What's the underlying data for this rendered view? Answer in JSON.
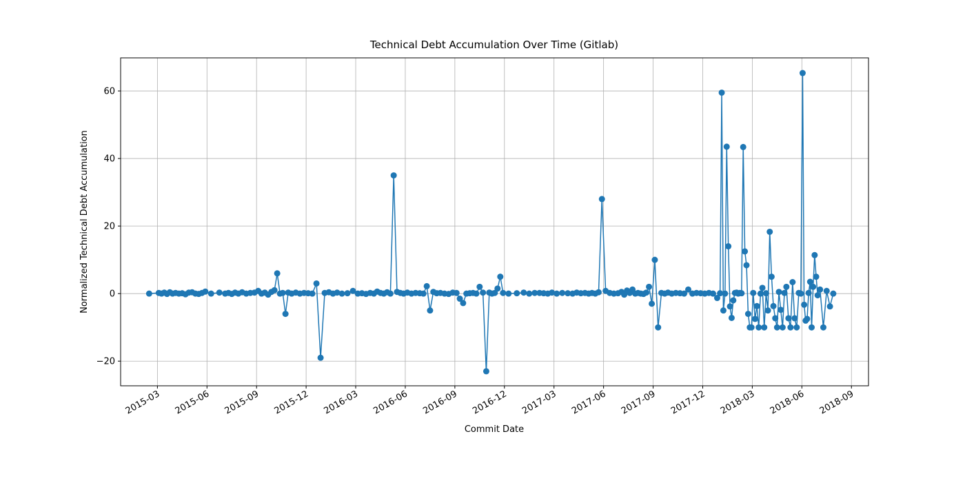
{
  "chart_data": {
    "type": "line",
    "title": "Technical Debt Accumulation Over Time (Gitlab)",
    "x_label": "Commit Date",
    "y_label": "Normalized Technical Debt Accumulation",
    "color": "#1f77b4",
    "grid": true,
    "xlim": [
      "2014-12-25",
      "2018-10-02"
    ],
    "ylim": [
      -27.3,
      69.8
    ],
    "xticks": [
      "2015-03",
      "2015-06",
      "2015-09",
      "2015-12",
      "2016-03",
      "2016-06",
      "2016-09",
      "2016-12",
      "2017-03",
      "2017-06",
      "2017-09",
      "2017-12",
      "2018-03",
      "2018-06",
      "2018-09"
    ],
    "yticks": [
      {
        "value": -20,
        "label": "−20"
      },
      0,
      20,
      40,
      60
    ],
    "x": [
      "2015-02",
      "2015-03",
      "2015-03",
      "2015-03",
      "2015-03",
      "2015-03",
      "2015-03",
      "2015-04",
      "2015-04",
      "2015-04",
      "2015-04",
      "2015-04",
      "2015-05",
      "2015-05",
      "2015-05",
      "2015-05",
      "2015-05",
      "2015-06",
      "2015-06",
      "2015-07",
      "2015-07",
      "2015-07",
      "2015-07",
      "2015-07",
      "2015-08",
      "2015-08",
      "2015-08",
      "2015-08",
      "2015-09",
      "2015-09",
      "2015-09",
      "2015-09",
      "2015-09",
      "2015-10",
      "2015-10",
      "2015-10",
      "2015-10",
      "2015-10",
      "2015-10",
      "2015-11",
      "2015-11",
      "2015-11",
      "2015-11",
      "2015-12",
      "2015-12",
      "2015-12",
      "2015-12",
      "2016-01",
      "2016-01",
      "2016-01",
      "2016-01",
      "2016-02",
      "2016-02",
      "2016-02",
      "2016-03",
      "2016-03",
      "2016-03",
      "2016-03",
      "2016-04",
      "2016-04",
      "2016-04",
      "2016-04",
      "2016-04",
      "2016-05",
      "2016-05",
      "2016-05",
      "2016-05",
      "2016-05",
      "2016-06",
      "2016-06",
      "2016-06",
      "2016-06",
      "2016-07",
      "2016-07",
      "2016-07",
      "2016-07",
      "2016-07",
      "2016-08",
      "2016-08",
      "2016-08",
      "2016-08",
      "2016-09",
      "2016-09",
      "2016-09",
      "2016-09",
      "2016-09",
      "2016-10",
      "2016-10",
      "2016-10",
      "2016-10",
      "2016-10",
      "2016-11",
      "2016-11",
      "2016-11",
      "2016-11",
      "2016-11",
      "2016-11",
      "2016-12",
      "2016-12",
      "2017-01",
      "2017-01",
      "2017-01",
      "2017-02",
      "2017-02",
      "2017-02",
      "2017-02",
      "2017-03",
      "2017-03",
      "2017-03",
      "2017-04",
      "2017-04",
      "2017-04",
      "2017-04",
      "2017-05",
      "2017-05",
      "2017-05",
      "2017-05",
      "2017-05",
      "2017-06",
      "2017-06",
      "2017-06",
      "2017-06",
      "2017-07",
      "2017-07",
      "2017-07",
      "2017-07",
      "2017-07",
      "2017-07",
      "2017-08",
      "2017-08",
      "2017-08",
      "2017-08",
      "2017-08",
      "2017-08",
      "2017-09",
      "2017-09",
      "2017-09",
      "2017-09",
      "2017-09",
      "2017-10",
      "2017-10",
      "2017-10",
      "2017-10",
      "2017-11",
      "2017-11",
      "2017-11",
      "2017-11",
      "2017-12",
      "2017-12",
      "2017-12",
      "2017-12",
      "2018-01",
      "2018-01",
      "2018-01",
      "2018-01",
      "2018-01",
      "2018-01",
      "2018-01",
      "2018-01",
      "2018-01",
      "2018-01",
      "2018-02",
      "2018-02",
      "2018-02",
      "2018-02",
      "2018-02",
      "2018-02",
      "2018-02",
      "2018-02",
      "2018-02",
      "2018-02",
      "2018-03",
      "2018-03",
      "2018-03",
      "2018-03",
      "2018-03",
      "2018-03",
      "2018-03",
      "2018-03",
      "2018-03",
      "2018-04",
      "2018-04",
      "2018-04",
      "2018-04",
      "2018-04",
      "2018-04",
      "2018-04",
      "2018-04",
      "2018-04",
      "2018-05",
      "2018-05",
      "2018-05",
      "2018-05",
      "2018-05",
      "2018-05",
      "2018-05",
      "2018-05",
      "2018-06",
      "2018-06",
      "2018-06",
      "2018-06",
      "2018-06",
      "2018-06",
      "2018-06",
      "2018-06",
      "2018-06",
      "2018-06",
      "2018-06",
      "2018-07",
      "2018-07",
      "2018-07",
      "2018-07",
      "2018-07"
    ],
    "values": [
      0,
      0.2,
      0,
      0.3,
      -0.1,
      0.4,
      0,
      0.2,
      0,
      0.1,
      -0.2,
      0.3,
      0.4,
      0,
      -0.1,
      0.2,
      0.6,
      0,
      0.3,
      0,
      0.2,
      -0.1,
      0.3,
      0,
      0.4,
      0,
      0.2,
      0.3,
      0.8,
      0,
      0.3,
      -0.3,
      0.5,
      1,
      6,
      0,
      0.2,
      -6,
      0.3,
      0,
      0.3,
      0,
      0.2,
      0.1,
      0,
      3,
      -19,
      0.2,
      0.4,
      0,
      0.3,
      0,
      0.1,
      0.8,
      0,
      0.1,
      -0.1,
      0.2,
      0,
      0.6,
      0.2,
      0,
      0.4,
      0,
      35,
      0.5,
      0.2,
      0,
      0.3,
      0,
      0.2,
      0.1,
      0,
      2.2,
      -5,
      0.5,
      0.1,
      0.2,
      0,
      -0.1,
      0.3,
      0.2,
      -1.5,
      -2.8,
      0,
      0.1,
      0.2,
      0,
      2,
      0.3,
      -23,
      0.3,
      0,
      0.2,
      1.5,
      5,
      0.2,
      0,
      0.1,
      0.3,
      0,
      0.2,
      0.2,
      0.1,
      0,
      0.3,
      0,
      0.2,
      0.1,
      0,
      0.3,
      0.1,
      0.2,
      0,
      0.2,
      0,
      0.4,
      28,
      0.8,
      0.2,
      0,
      0.1,
      0.5,
      -0.3,
      0.9,
      0.2,
      1.2,
      0,
      0.2,
      0,
      -0.1,
      0.3,
      2,
      -3,
      10,
      -10,
      0.2,
      0,
      0.3,
      0,
      0.2,
      0.1,
      0,
      1.2,
      0,
      0.2,
      0.1,
      0,
      0.2,
      0,
      -1.3,
      0.1,
      59.5,
      -5,
      0,
      43.5,
      14,
      -3.8,
      -7.2,
      -2,
      0.2,
      0.3,
      0,
      0.2,
      0.1,
      43.4,
      12.5,
      8.4,
      -6,
      -10,
      -10,
      0.2,
      -7.5,
      -3.7,
      -10,
      0,
      1.7,
      -10,
      0.1,
      -5,
      18.3,
      5,
      -3.7,
      -7.3,
      -10,
      0.5,
      -4.8,
      -10,
      0.2,
      2,
      -7.3,
      -10,
      3.4,
      -7.3,
      -10,
      0.2,
      0,
      65.3,
      -3.3,
      -8,
      -7.5,
      0.2,
      3.5,
      -10,
      2,
      11.4,
      5,
      -0.5,
      1.2,
      -10,
      0.8,
      -3.8,
      0
    ]
  }
}
